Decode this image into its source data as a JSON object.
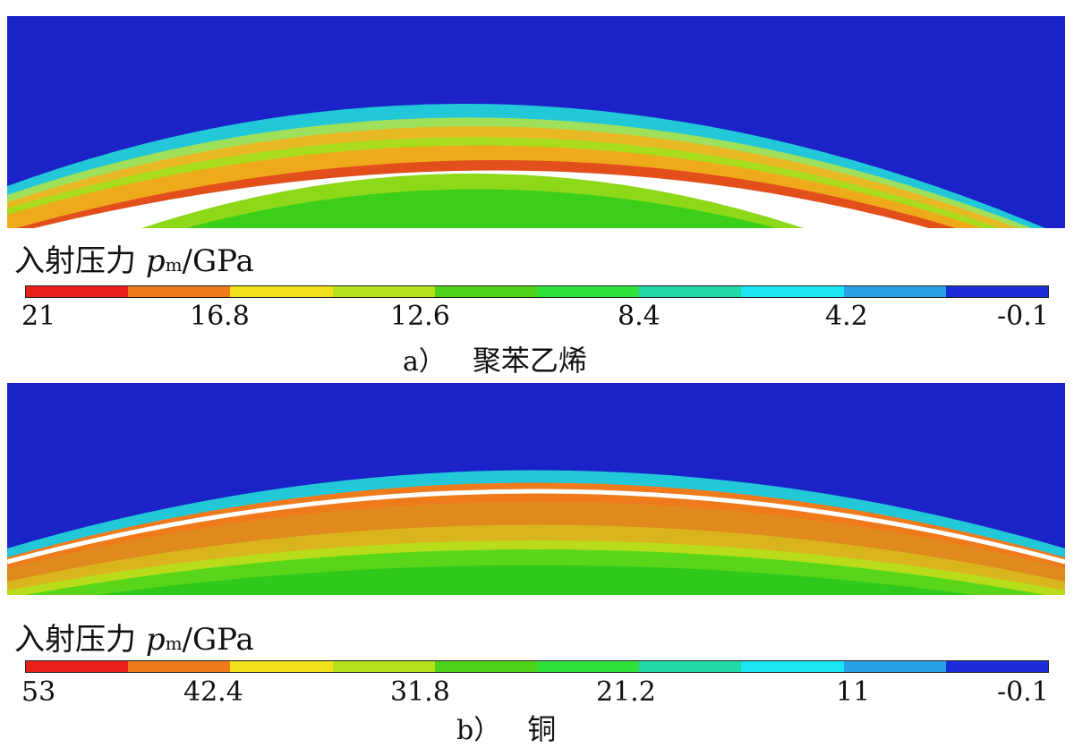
{
  "panels": [
    {
      "legend_label_prefix": "入射压力",
      "legend_var": "p",
      "legend_sub": "m",
      "legend_unit": "/GPa",
      "ticks": [
        "21",
        "16.8",
        "12.6",
        "8.4",
        "4.2",
        "-0.1"
      ],
      "caption_letter": "a）",
      "caption_text": "聚苯乙烯"
    },
    {
      "legend_label_prefix": "入射压力",
      "legend_var": "p",
      "legend_sub": "m",
      "legend_unit": "/GPa",
      "ticks": [
        "53",
        "42.4",
        "31.8",
        "21.2",
        "11",
        "-0.1"
      ],
      "caption_letter": "b）",
      "caption_text": "铜"
    }
  ],
  "colors": {
    "scale": [
      "#e8201c",
      "#ef7a1c",
      "#f2e01a",
      "#b5e21a",
      "#4fd31a",
      "#2ee03a",
      "#22d8a8",
      "#18e6f0",
      "#2aa0e8",
      "#1a2cd8"
    ],
    "background_blue": "#1a22c8",
    "dark_green": "#28c81a"
  }
}
